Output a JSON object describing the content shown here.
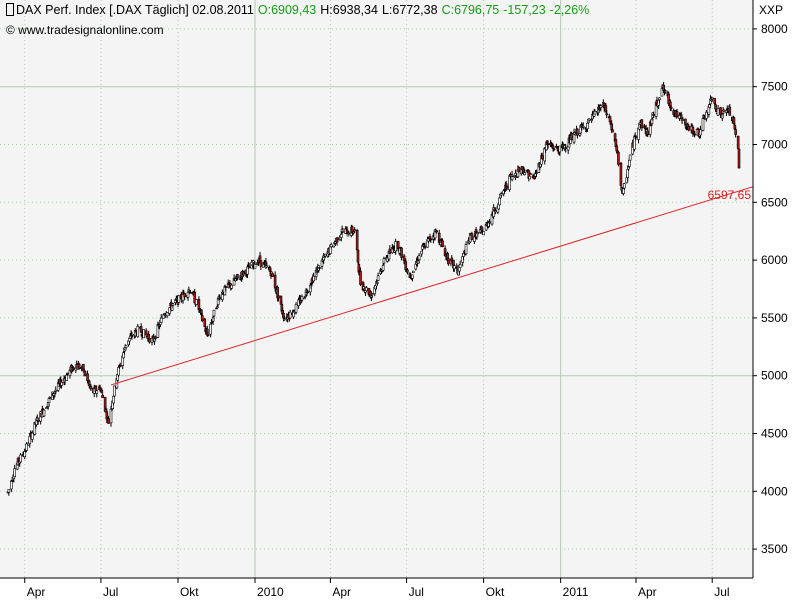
{
  "header": {
    "title": "DAX Perf. Index [.DAX  Täglich] 02.08.2011",
    "open": "O:6909,43",
    "high": "H:6938,34",
    "low": "L:6772,38",
    "close": "C:6796,75",
    "change": "-157,23",
    "change_pct": "-2,26%",
    "source": "© www.tradesignalonline.com",
    "unit": "XXP"
  },
  "colors": {
    "plot_bg": "#f4f4f4",
    "grid": "#b5c9b5",
    "up_candle": "#ffffff",
    "down_candle": "#b01818",
    "wick": "#000000",
    "trendline": "#e02020",
    "change_text": "#12a012"
  },
  "chart_data": {
    "type": "candlestick",
    "title": "DAX Perf. Index [.DAX  Täglich] 02.08.2011",
    "ylabel": "XXP",
    "ylim": [
      3250,
      8250
    ],
    "y_ticks": [
      "8000",
      "7500",
      "7000",
      "6500",
      "6000",
      "5500",
      "5000",
      "4500",
      "4000",
      "3500"
    ],
    "x_ticks": [
      "Apr",
      "Jul",
      "Okt",
      "2010",
      "Apr",
      "Jul",
      "Okt",
      "2011",
      "Apr",
      "Jul"
    ],
    "x_range": [
      "2009-03-12",
      "2011-08-02"
    ],
    "grid": true,
    "trendline": {
      "from": {
        "date": "2009-07-13",
        "value": 4920
      },
      "to": {
        "date": "2011-08-02",
        "value": 6597.65
      },
      "label": "6597,65"
    },
    "price_path": [
      [
        "2009-03-12",
        3990
      ],
      [
        "2009-03-20",
        4200
      ],
      [
        "2009-04-01",
        4350
      ],
      [
        "2009-04-15",
        4600
      ],
      [
        "2009-05-01",
        4800
      ],
      [
        "2009-05-15",
        4950
      ],
      [
        "2009-06-01",
        5100
      ],
      [
        "2009-06-10",
        5050
      ],
      [
        "2009-06-20",
        4850
      ],
      [
        "2009-06-30",
        4900
      ],
      [
        "2009-07-10",
        4600
      ],
      [
        "2009-07-20",
        5000
      ],
      [
        "2009-08-01",
        5300
      ],
      [
        "2009-08-15",
        5400
      ],
      [
        "2009-09-01",
        5300
      ],
      [
        "2009-09-15",
        5550
      ],
      [
        "2009-10-01",
        5650
      ],
      [
        "2009-10-15",
        5750
      ],
      [
        "2009-10-25",
        5600
      ],
      [
        "2009-11-05",
        5350
      ],
      [
        "2009-11-20",
        5700
      ],
      [
        "2009-12-05",
        5800
      ],
      [
        "2009-12-20",
        5900
      ],
      [
        "2010-01-05",
        6000
      ],
      [
        "2010-01-20",
        5900
      ],
      [
        "2010-02-05",
        5500
      ],
      [
        "2010-02-15",
        5550
      ],
      [
        "2010-03-01",
        5700
      ],
      [
        "2010-03-15",
        5900
      ],
      [
        "2010-04-01",
        6100
      ],
      [
        "2010-04-15",
        6250
      ],
      [
        "2010-04-30",
        6250
      ],
      [
        "2010-05-07",
        5800
      ],
      [
        "2010-05-20",
        5700
      ],
      [
        "2010-06-05",
        6000
      ],
      [
        "2010-06-20",
        6150
      ],
      [
        "2010-07-05",
        5850
      ],
      [
        "2010-07-20",
        6100
      ],
      [
        "2010-08-05",
        6250
      ],
      [
        "2010-08-20",
        6000
      ],
      [
        "2010-08-31",
        5900
      ],
      [
        "2010-09-15",
        6200
      ],
      [
        "2010-10-01",
        6250
      ],
      [
        "2010-10-15",
        6450
      ],
      [
        "2010-11-01",
        6700
      ],
      [
        "2010-11-15",
        6800
      ],
      [
        "2010-11-30",
        6700
      ],
      [
        "2010-12-15",
        7000
      ],
      [
        "2011-01-01",
        6950
      ],
      [
        "2011-01-20",
        7100
      ],
      [
        "2011-02-05",
        7200
      ],
      [
        "2011-02-20",
        7350
      ],
      [
        "2011-03-01",
        7200
      ],
      [
        "2011-03-10",
        6900
      ],
      [
        "2011-03-16",
        6550
      ],
      [
        "2011-03-25",
        6900
      ],
      [
        "2011-04-05",
        7200
      ],
      [
        "2011-04-15",
        7100
      ],
      [
        "2011-05-02",
        7500
      ],
      [
        "2011-05-15",
        7300
      ],
      [
        "2011-06-01",
        7150
      ],
      [
        "2011-06-15",
        7100
      ],
      [
        "2011-07-01",
        7400
      ],
      [
        "2011-07-10",
        7250
      ],
      [
        "2011-07-20",
        7300
      ],
      [
        "2011-07-26",
        7200
      ],
      [
        "2011-08-01",
        6950
      ],
      [
        "2011-08-02",
        6797
      ]
    ]
  }
}
